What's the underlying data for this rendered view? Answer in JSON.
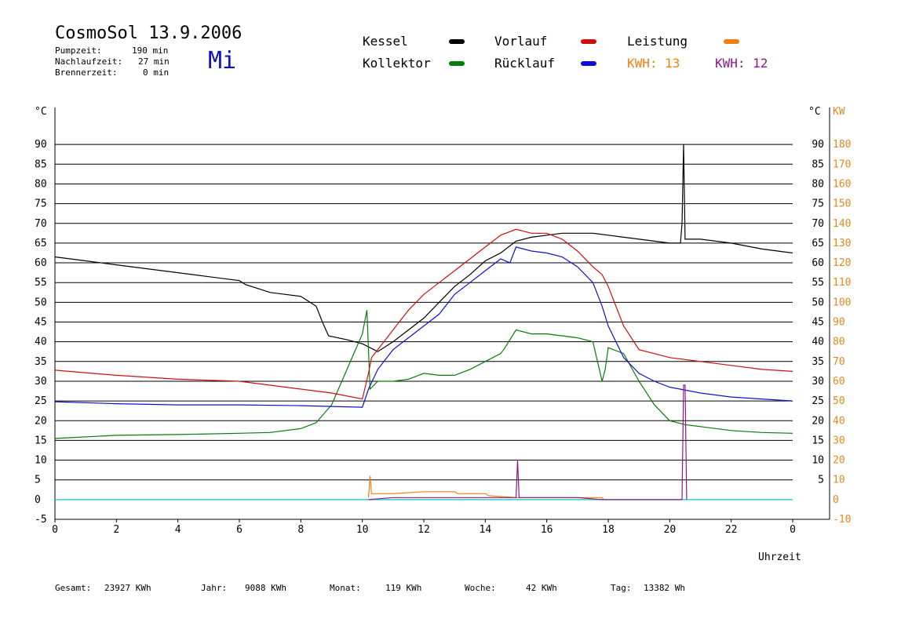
{
  "header": {
    "title": "CosmoSol 13.9.2006",
    "pump_label": "Pumpzeit:",
    "pump_value": "190 min",
    "nachlauf_label": "Nachlaufzeit:",
    "nachlauf_value": "27 min",
    "brenner_label": "Brennerzeit:",
    "brenner_value": "0 min",
    "weekday": "Mi"
  },
  "legend": {
    "kessel": "Kessel",
    "kollektor": "Kollektor",
    "vorlauf": "Vorlauf",
    "ruecklauf": "Rücklauf",
    "leistung": "Leistung",
    "kwh_orange": "KWH: 13",
    "kwh_purple": "KWH: 12"
  },
  "colors": {
    "kessel": "#000000",
    "kollektor": "#0a7a0a",
    "vorlauf": "#cc1010",
    "ruecklauf": "#1010cc",
    "leistung": "#f08010",
    "kwh_purple": "#8a1a8a",
    "baseline": "#30d0d0",
    "axis_right_kw": "#e08a20"
  },
  "footer": {
    "gesamt_label": "Gesamt:",
    "gesamt_value": "23927 KWh",
    "jahr_label": "Jahr:",
    "jahr_value": "9088 KWh",
    "monat_label": "Monat:",
    "monat_value": "119 KWh",
    "woche_label": "Woche:",
    "woche_value": "42 KWh",
    "tag_label": "Tag:",
    "tag_value": "13382 Wh"
  },
  "chart_data": {
    "type": "line",
    "xlabel": "Uhrzeit",
    "ylabel_left": "°C",
    "ylabel_right_temp": "°C",
    "ylabel_right_power": "KW",
    "xlim": [
      0,
      24
    ],
    "ylim": [
      -5,
      95
    ],
    "x_ticks": [
      "0",
      "2",
      "4",
      "6",
      "8",
      "10",
      "12",
      "14",
      "16",
      "18",
      "20",
      "22",
      "0"
    ],
    "y_ticks_left": [
      "90",
      "85",
      "80",
      "75",
      "70",
      "65",
      "60",
      "55",
      "50",
      "45",
      "40",
      "35",
      "30",
      "25",
      "20",
      "15",
      "10",
      "5",
      "0",
      "-5"
    ],
    "y_ticks_right_temp": [
      "90",
      "85",
      "80",
      "75",
      "70",
      "65",
      "60",
      "55",
      "50",
      "45",
      "40",
      "35",
      "30",
      "25",
      "20",
      "15",
      "10",
      "5"
    ],
    "y_ticks_right_kw": [
      "180",
      "170",
      "160",
      "150",
      "140",
      "130",
      "120",
      "110",
      "100",
      "90",
      "80",
      "70",
      "60",
      "50",
      "40",
      "30",
      "20",
      "10",
      "0",
      "-10"
    ],
    "grid": true,
    "series": [
      {
        "name": "Kessel",
        "color": "#000000",
        "x": [
          0,
          1,
          2,
          3,
          4,
          5,
          6,
          6.2,
          7,
          7.5,
          8,
          8.5,
          8.7,
          8.9,
          9.5,
          10,
          10.5,
          11,
          11.5,
          12,
          12.5,
          13,
          13.5,
          14,
          14.5,
          15,
          15.5,
          16,
          16.5,
          17,
          17.5,
          18,
          18.5,
          19,
          19.5,
          20,
          20.35,
          20.4,
          20.45,
          20.5,
          20.55,
          21,
          22,
          23,
          24
        ],
        "y": [
          61.5,
          60.5,
          59.5,
          58.5,
          57.5,
          56.5,
          55.5,
          54.5,
          52.5,
          52,
          51.5,
          49,
          45,
          41.5,
          40.5,
          39.5,
          37.5,
          40,
          43,
          46,
          50,
          54,
          57,
          60.5,
          62.5,
          65.5,
          66.5,
          67,
          67.5,
          67.5,
          67.5,
          67,
          66.5,
          66,
          65.5,
          65,
          65,
          70,
          90,
          66,
          66,
          66,
          65,
          63.5,
          62.5
        ]
      },
      {
        "name": "Kollektor",
        "color": "#0a7a0a",
        "x": [
          0,
          2,
          4,
          6,
          7,
          8,
          8.5,
          9,
          9.5,
          10,
          10.15,
          10.25,
          10.5,
          11,
          11.5,
          12,
          12.5,
          13,
          13.5,
          14,
          14.5,
          14.6,
          15,
          15.5,
          16,
          16.5,
          17,
          17.5,
          17.8,
          17.9,
          18,
          18.5,
          19,
          19.5,
          20,
          20.5,
          21,
          22,
          23,
          24
        ],
        "y": [
          15.5,
          16.3,
          16.5,
          16.8,
          17,
          18,
          19.5,
          24,
          33,
          42,
          48,
          28,
          30,
          30,
          30.5,
          32,
          31.5,
          31.5,
          33,
          35,
          37,
          38,
          43,
          42,
          42,
          41.5,
          41,
          40,
          30,
          33,
          38.5,
          37,
          30,
          24,
          20,
          19,
          18.5,
          17.5,
          17,
          16.8
        ]
      },
      {
        "name": "Vorlauf",
        "color": "#cc1010",
        "x": [
          0,
          2,
          4,
          6,
          8,
          9,
          10,
          10.2,
          10.3,
          10.5,
          11,
          11.5,
          12,
          12.5,
          13,
          13.5,
          14,
          14.5,
          15,
          15.5,
          16,
          16.5,
          17,
          17.5,
          17.8,
          18,
          18.5,
          19,
          20,
          21,
          22,
          23,
          24
        ],
        "y": [
          32.8,
          31.5,
          30.5,
          30,
          28,
          27,
          25.5,
          32,
          36,
          38,
          43,
          48,
          52,
          55,
          58,
          61,
          64,
          67,
          68.5,
          67.5,
          67.5,
          66,
          63,
          59,
          57,
          54,
          44,
          38,
          36,
          35,
          34,
          33,
          32.5
        ]
      },
      {
        "name": "Rücklauf",
        "color": "#1010cc",
        "x": [
          0,
          2,
          4,
          6,
          8,
          9,
          10,
          10.2,
          10.5,
          11,
          11.5,
          12,
          12.5,
          13,
          13.5,
          14,
          14.5,
          14.8,
          15,
          15.5,
          16,
          16.5,
          17,
          17.5,
          17.8,
          18,
          18.5,
          19,
          19.5,
          20,
          21,
          22,
          23,
          24
        ],
        "y": [
          24.8,
          24.3,
          24,
          24,
          23.8,
          23.6,
          23.4,
          28,
          33,
          38,
          41,
          44,
          47,
          52,
          55,
          58,
          61,
          60,
          64,
          63,
          62.5,
          61.5,
          59,
          55,
          49,
          44,
          36,
          32,
          30,
          28.5,
          27,
          26,
          25.5,
          25
        ]
      },
      {
        "name": "Leistung",
        "color": "#f08010",
        "x": [
          10.2,
          10.25,
          10.3,
          11,
          12,
          13,
          13.1,
          14,
          14.1,
          15,
          16,
          17,
          17.5,
          17.8,
          17.85
        ],
        "y": [
          0.5,
          6,
          1.5,
          1.5,
          2,
          2,
          1.5,
          1.5,
          1,
          0.5,
          0.5,
          0.5,
          0.5,
          0.5,
          0
        ]
      },
      {
        "name": "KWH",
        "color": "#8a1a8a",
        "x": [
          10.2,
          11,
          12,
          13,
          14,
          15,
          15.05,
          15.1,
          16,
          17,
          17.8,
          20.4,
          20.45,
          20.5,
          20.55
        ],
        "y": [
          0,
          0.5,
          0.5,
          0.5,
          0.5,
          0.5,
          10,
          0.5,
          0.5,
          0.5,
          0,
          0,
          29,
          29,
          0
        ]
      }
    ],
    "baseline": {
      "y": 0,
      "color": "#30d0d0"
    }
  }
}
